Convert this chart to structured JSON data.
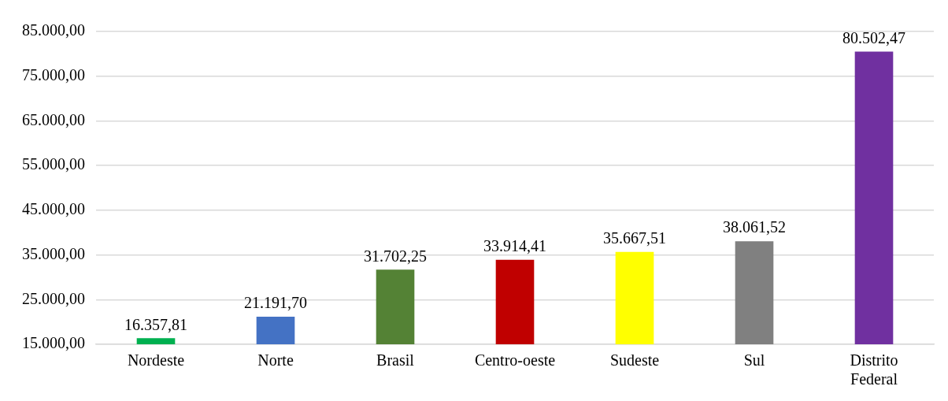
{
  "chart_data": {
    "type": "bar",
    "categories": [
      "Nordeste",
      "Norte",
      "Brasil",
      "Centro-oeste",
      "Sudeste",
      "Sul",
      "Distrito Federal"
    ],
    "values": [
      16357.81,
      21191.7,
      31702.25,
      33914.41,
      35667.51,
      38061.52,
      80502.47
    ],
    "colors": [
      "#00b050",
      "#4472c4",
      "#548235",
      "#c00000",
      "#ffff00",
      "#808080",
      "#7030a0"
    ],
    "value_labels": [
      "16.357,81",
      "21.191,70",
      "31.702,25",
      "33.914,41",
      "35.667,51",
      "38.061,52",
      "80.502,47"
    ],
    "ylim": [
      15000,
      85000
    ],
    "yticks": [
      {
        "value": 15000,
        "label": "15.000,00"
      },
      {
        "value": 25000,
        "label": "25.000,00"
      },
      {
        "value": 35000,
        "label": "35.000,00"
      },
      {
        "value": 45000,
        "label": "45.000,00"
      },
      {
        "value": 55000,
        "label": "55.000,00"
      },
      {
        "value": 65000,
        "label": "65.000,00"
      },
      {
        "value": 75000,
        "label": "75.000,00"
      },
      {
        "value": 85000,
        "label": "85.000,00"
      }
    ],
    "grid": "y",
    "legend": false
  }
}
